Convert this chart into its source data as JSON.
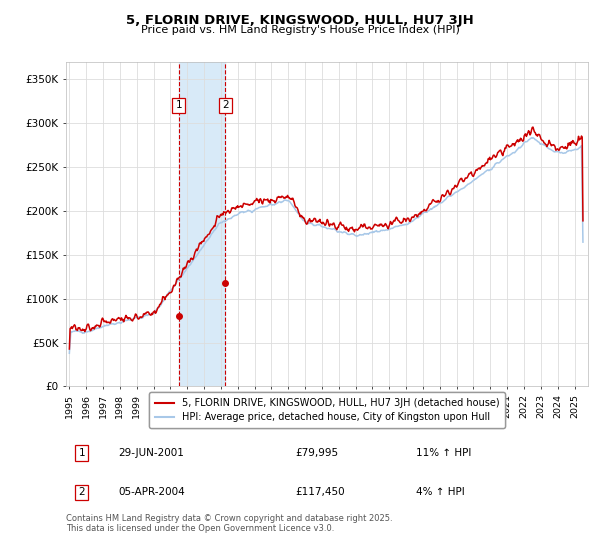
{
  "title": "5, FLORIN DRIVE, KINGSWOOD, HULL, HU7 3JH",
  "subtitle": "Price paid vs. HM Land Registry's House Price Index (HPI)",
  "ylim": [
    0,
    370000
  ],
  "yticks": [
    0,
    50000,
    100000,
    150000,
    200000,
    250000,
    300000,
    350000
  ],
  "ytick_labels": [
    "£0",
    "£50K",
    "£100K",
    "£150K",
    "£200K",
    "£250K",
    "£300K",
    "£350K"
  ],
  "hpi_color": "#a8c8e8",
  "price_color": "#cc0000",
  "shade_color": "#d8eaf8",
  "t1_year": 2001.49,
  "t1_price": 79995,
  "t2_year": 2004.27,
  "t2_price": 117450,
  "legend_entries": [
    "5, FLORIN DRIVE, KINGSWOOD, HULL, HU7 3JH (detached house)",
    "HPI: Average price, detached house, City of Kingston upon Hull"
  ],
  "tx1_date": "29-JUN-2001",
  "tx1_price": "£79,995",
  "tx1_hpi": "11% ↑ HPI",
  "tx2_date": "05-APR-2004",
  "tx2_price": "£117,450",
  "tx2_hpi": "4% ↑ HPI",
  "footnote": "Contains HM Land Registry data © Crown copyright and database right 2025.\nThis data is licensed under the Open Government Licence v3.0."
}
